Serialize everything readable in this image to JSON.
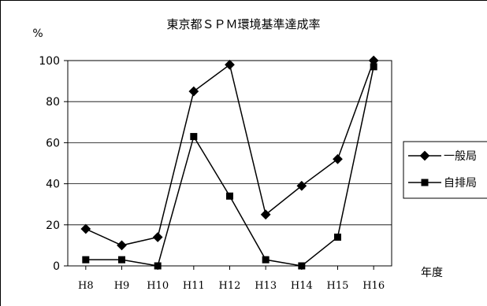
{
  "chart_data": {
    "type": "line",
    "title": "東京都ＳＰＭ環境基準達成率",
    "ylabel": "%",
    "xlabel": "年度",
    "ylim": [
      0,
      100
    ],
    "yticks": [
      0,
      20,
      40,
      60,
      80,
      100
    ],
    "categories": [
      "H8",
      "H9",
      "H10",
      "H11",
      "H12",
      "H13",
      "H14",
      "H15",
      "H16"
    ],
    "grid": true,
    "legend_position": "right",
    "series": [
      {
        "name": "一般局",
        "marker": "diamond",
        "color": "#000000",
        "values": [
          18,
          10,
          14,
          85,
          98,
          25,
          39,
          52,
          100
        ]
      },
      {
        "name": "自排局",
        "marker": "square",
        "color": "#000000",
        "values": [
          3,
          3,
          0,
          63,
          34,
          3,
          0,
          14,
          97
        ]
      }
    ]
  }
}
